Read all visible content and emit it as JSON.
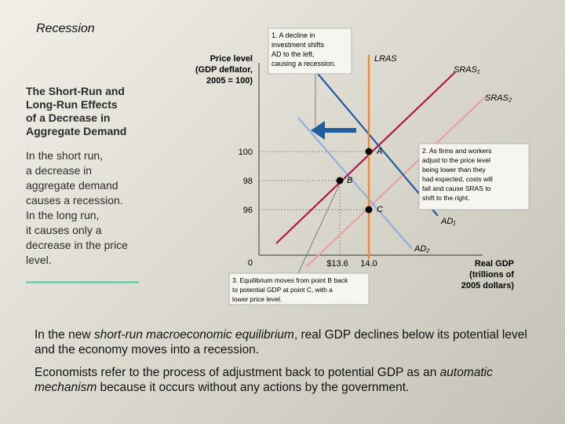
{
  "slide": {
    "title": "Recession",
    "side_heading_lines": [
      "The Short-Run and",
      "Long-Run Effects",
      "of a Decrease in",
      "Aggregate Demand"
    ],
    "side_body_lines": [
      "In the short run,",
      "a decrease in",
      "aggregate demand",
      "causes a recession.",
      "In the long run,",
      "it causes only a",
      "decrease in the price",
      "level."
    ],
    "para1": {
      "pre": "In the new ",
      "em": "short-run macroeconomic equilibrium",
      "post": ", real GDP declines below its potential level and the economy moves into a recession."
    },
    "para2": {
      "pre": "Economists refer to the process of adjustment back to potential GDP as an ",
      "em": "automatic mechanism",
      "post": " because it occurs without any actions by the government."
    }
  },
  "diagram": {
    "y_axis_label_lines": [
      "Price level",
      "(GDP deflator,",
      "2005 = 100)"
    ],
    "x_axis_label_lines": [
      "Real GDP",
      "(trillions of",
      "2005 dollars)"
    ],
    "y_ticks": [
      "100",
      "98",
      "96",
      "0"
    ],
    "x_ticks": [
      "$13.6",
      "14.0"
    ],
    "curve_labels": {
      "lras": "LRAS",
      "sras1": "SRAS₁",
      "sras2": "SRAS₂",
      "ad1": "AD₁",
      "ad2": "AD₂"
    },
    "points": {
      "a": "A",
      "b": "B",
      "c": "C"
    },
    "note1_lines": [
      "1. A decline in",
      "investment shifts",
      "AD to the left,",
      "causing a recession."
    ],
    "note2_lines": [
      "2. As firms and workers",
      "adjust to the price level",
      "being lower than they",
      "had expected, costs will",
      "fall and cause SRAS to",
      "shift to the right."
    ],
    "note3_lines": [
      "3. Equilibrium moves from point B back",
      "to potential GDP at point C, with a",
      "lower price level."
    ],
    "colors": {
      "lras": "#f08a2b",
      "sras1": "#b3164a",
      "sras2": "#e9a0a7",
      "ad1": "#1f5fa0",
      "ad2": "#8fb2d8",
      "arrow": "#1f5fa0",
      "point": "#000000"
    }
  }
}
